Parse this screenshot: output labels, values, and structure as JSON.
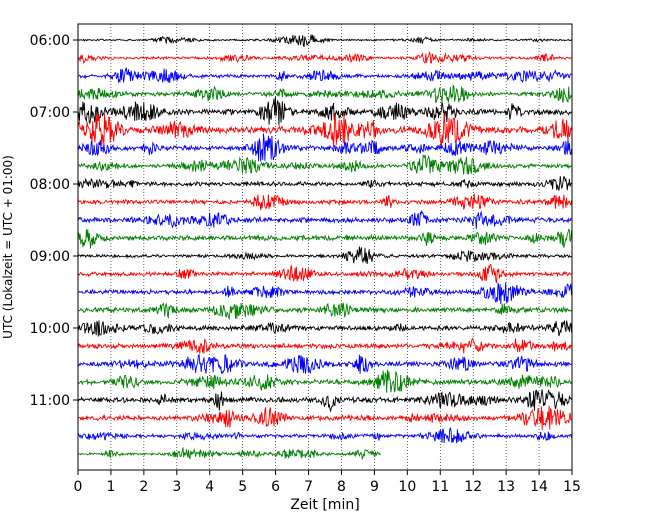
{
  "chart_data": {
    "type": "line",
    "title": "",
    "xlabel": "Zeit  [min]",
    "ylabel": "UTC (Lokalzeit = UTC + 01:00)",
    "xlim": [
      0,
      15
    ],
    "x_ticks": [
      "0",
      "1",
      "2",
      "3",
      "4",
      "5",
      "6",
      "7",
      "8",
      "9",
      "10",
      "11",
      "12",
      "13",
      "14",
      "15"
    ],
    "y_ticks": [
      "06:00",
      "07:00",
      "08:00",
      "09:00",
      "10:00",
      "11:00"
    ],
    "grid": "vertical-dotted",
    "trace_interval_minutes": 15,
    "trace_colors": [
      "#000000",
      "#ff0000",
      "#0000ff",
      "#008000"
    ],
    "traces": [
      {
        "start": "06:00",
        "end_min": 15,
        "amplitude": 1.0
      },
      {
        "start": "06:15",
        "end_min": 15,
        "amplitude": 1.3
      },
      {
        "start": "06:30",
        "end_min": 15,
        "amplitude": 2.0
      },
      {
        "start": "06:45",
        "end_min": 15,
        "amplitude": 2.4
      },
      {
        "start": "07:00",
        "end_min": 15,
        "amplitude": 3.2
      },
      {
        "start": "07:15",
        "end_min": 15,
        "amplitude": 3.8
      },
      {
        "start": "07:30",
        "end_min": 15,
        "amplitude": 2.6
      },
      {
        "start": "07:45",
        "end_min": 15,
        "amplitude": 2.2
      },
      {
        "start": "08:00",
        "end_min": 15,
        "amplitude": 2.4
      },
      {
        "start": "08:15",
        "end_min": 15,
        "amplitude": 2.6
      },
      {
        "start": "08:30",
        "end_min": 15,
        "amplitude": 3.0
      },
      {
        "start": "08:45",
        "end_min": 15,
        "amplitude": 2.8
      },
      {
        "start": "09:00",
        "end_min": 15,
        "amplitude": 1.8
      },
      {
        "start": "09:15",
        "end_min": 15,
        "amplitude": 2.2
      },
      {
        "start": "09:30",
        "end_min": 15,
        "amplitude": 2.4
      },
      {
        "start": "09:45",
        "end_min": 15,
        "amplitude": 2.8
      },
      {
        "start": "10:00",
        "end_min": 15,
        "amplitude": 2.6
      },
      {
        "start": "10:15",
        "end_min": 15,
        "amplitude": 2.6
      },
      {
        "start": "10:30",
        "end_min": 15,
        "amplitude": 2.8
      },
      {
        "start": "10:45",
        "end_min": 15,
        "amplitude": 2.8
      },
      {
        "start": "11:00",
        "end_min": 15,
        "amplitude": 3.0
      },
      {
        "start": "11:15",
        "end_min": 15,
        "amplitude": 2.8
      },
      {
        "start": "11:30",
        "end_min": 15,
        "amplitude": 2.0
      },
      {
        "start": "11:45",
        "end_min": 9.2,
        "amplitude": 1.2
      }
    ]
  }
}
